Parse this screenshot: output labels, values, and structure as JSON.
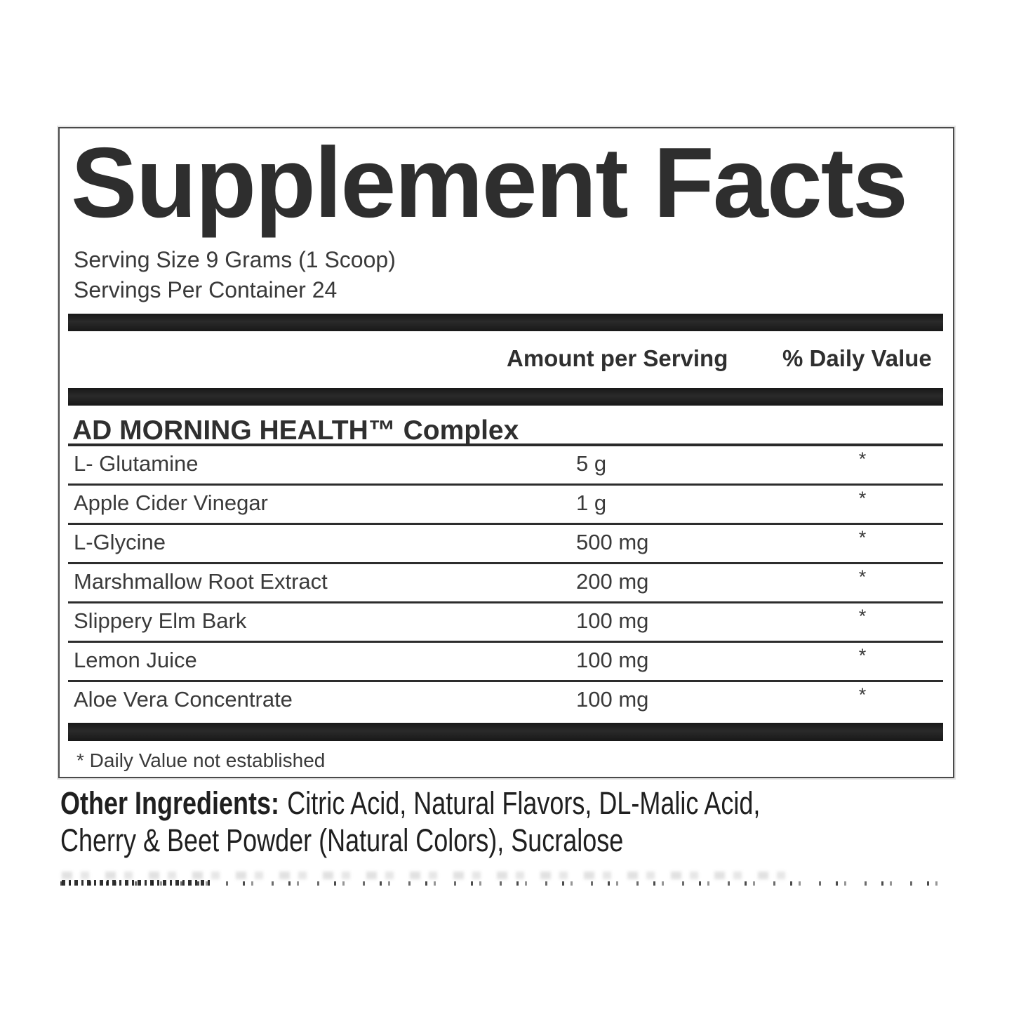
{
  "facts": {
    "title": "Supplement Facts",
    "serving_size": "Serving Size 9 Grams (1 Scoop)",
    "servings_per_container": "Servings Per Container 24",
    "columns": {
      "amount_header": "Amount per Serving",
      "daily_value_header": "% Daily Value"
    },
    "complex_heading": "AD MORNING HEALTH™ Complex",
    "rows": [
      {
        "name": "L- Glutamine",
        "amount": "5 g",
        "dv": "*"
      },
      {
        "name": "Apple Cider Vinegar",
        "amount": "1 g",
        "dv": "*"
      },
      {
        "name": "L-Glycine",
        "amount": "500 mg",
        "dv": "*"
      },
      {
        "name": "Marshmallow Root Extract",
        "amount": "200 mg",
        "dv": "*"
      },
      {
        "name": "Slippery Elm Bark",
        "amount": "100 mg",
        "dv": "*"
      },
      {
        "name": "Lemon Juice",
        "amount": "100 mg",
        "dv": "*"
      },
      {
        "name": "Aloe Vera Concentrate",
        "amount": "100 mg",
        "dv": "*"
      }
    ],
    "footnote": "* Daily Value not established"
  },
  "other_ingredients": {
    "label": "Other Ingredients:",
    "line1": "Citric Acid, Natural Flavors, DL-Malic Acid,",
    "line2": "Cherry & Beet Powder (Natural Colors), Sucralose"
  },
  "colors": {
    "background": "#ffffff",
    "panel_border": "#4a4a4a",
    "divider_bar": "#1e1e1e",
    "title_text": "#2e2e2e",
    "body_text": "#3a3a3a",
    "other_ingredients_text": "#1f1f1f"
  }
}
